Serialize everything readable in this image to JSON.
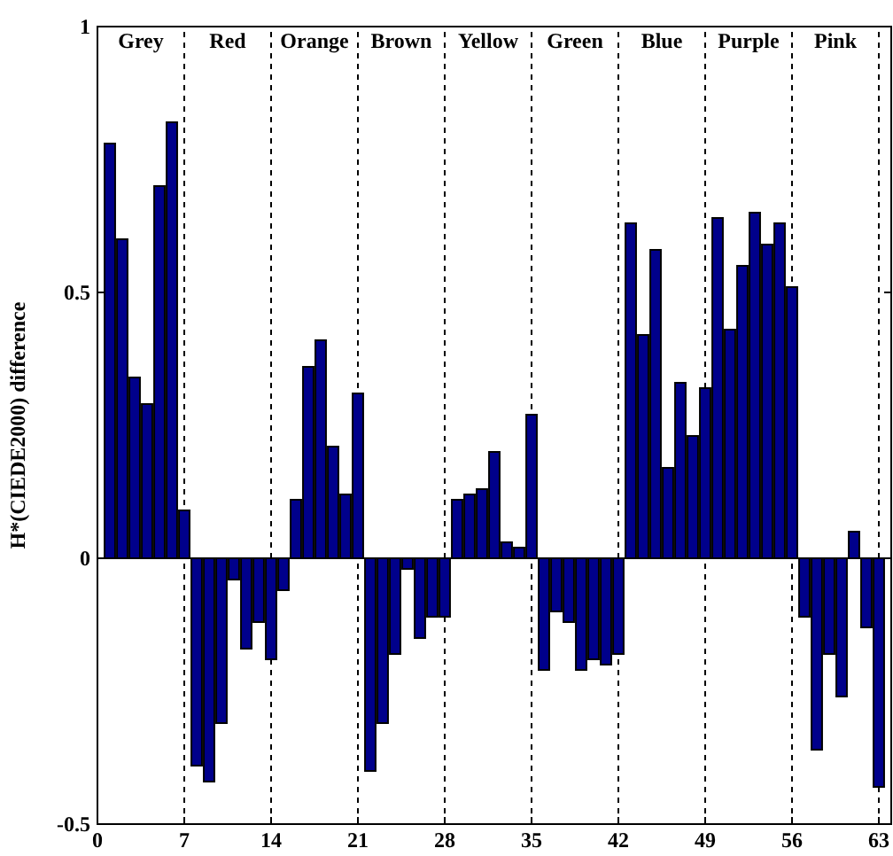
{
  "chart_data": {
    "type": "bar",
    "ylabel": "H*(CIEDE2000) difference",
    "x": [
      1,
      2,
      3,
      4,
      5,
      6,
      7,
      8,
      9,
      10,
      11,
      12,
      13,
      14,
      15,
      16,
      17,
      18,
      19,
      20,
      21,
      22,
      23,
      24,
      25,
      26,
      27,
      28,
      29,
      30,
      31,
      32,
      33,
      34,
      35,
      36,
      37,
      38,
      39,
      40,
      41,
      42,
      43,
      44,
      45,
      46,
      47,
      48,
      49,
      50,
      51,
      52,
      53,
      54,
      55,
      56,
      57,
      58,
      59,
      60,
      61,
      62,
      63
    ],
    "values": [
      0.78,
      0.6,
      0.34,
      0.29,
      0.7,
      0.82,
      0.09,
      -0.39,
      -0.42,
      -0.31,
      -0.04,
      -0.17,
      -0.12,
      -0.19,
      -0.06,
      0.11,
      0.36,
      0.41,
      0.21,
      0.12,
      0.31,
      -0.4,
      -0.31,
      -0.18,
      -0.02,
      -0.15,
      -0.11,
      -0.11,
      0.11,
      0.12,
      0.13,
      0.2,
      0.03,
      0.02,
      0.27,
      -0.21,
      -0.1,
      -0.12,
      -0.21,
      -0.19,
      -0.2,
      -0.18,
      0.63,
      0.42,
      0.58,
      0.17,
      0.33,
      0.23,
      0.32,
      0.64,
      0.43,
      0.55,
      0.65,
      0.59,
      0.63,
      0.51,
      -0.11,
      -0.36,
      -0.18,
      -0.26,
      0.05,
      -0.13,
      -0.43
    ],
    "color": "#00008b",
    "xlim": [
      0,
      64
    ],
    "xticks": [
      0,
      7,
      14,
      21,
      28,
      35,
      42,
      49,
      56,
      63
    ],
    "ylim": [
      -0.5,
      1
    ],
    "yticks": [
      {
        "value": -0.5,
        "label": "-0.5"
      },
      0,
      {
        "value": 0.5,
        "label": "0.5"
      },
      1
    ],
    "grid": false,
    "ref_lines": [
      {
        "axis": "x",
        "value": 7,
        "color": "#000000",
        "line_style": "dashed"
      },
      {
        "axis": "x",
        "value": 14,
        "color": "#000000",
        "line_style": "dashed"
      },
      {
        "axis": "x",
        "value": 21,
        "color": "#000000",
        "line_style": "dashed"
      },
      {
        "axis": "x",
        "value": 28,
        "color": "#000000",
        "line_style": "dashed"
      },
      {
        "axis": "x",
        "value": 35,
        "color": "#000000",
        "line_style": "dashed"
      },
      {
        "axis": "x",
        "value": 42,
        "color": "#000000",
        "line_style": "dashed"
      },
      {
        "axis": "x",
        "value": 49,
        "color": "#000000",
        "line_style": "dashed"
      },
      {
        "axis": "x",
        "value": 56,
        "color": "#000000",
        "line_style": "dashed"
      },
      {
        "axis": "x",
        "value": 63,
        "color": "#000000",
        "line_style": "dashed"
      }
    ],
    "annotations": [
      "Grey",
      "Red",
      "Orange",
      "Brown",
      "Yellow",
      "Green",
      "Blue",
      "Purple",
      "Pink"
    ]
  }
}
